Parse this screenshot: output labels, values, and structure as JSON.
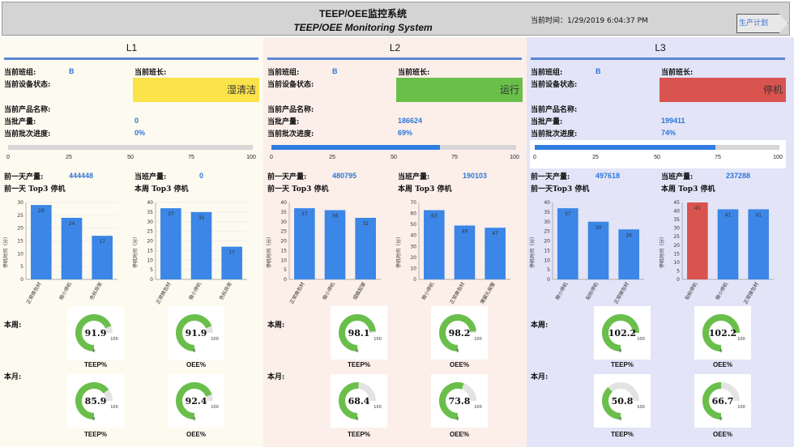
{
  "header": {
    "title_cn": "TEEP/OEE监控系统",
    "title_en": "TEEP/OEE Monitoring System",
    "time_label": "当前时间：",
    "time_value": "1/29/2019 6:04:37 PM",
    "plan_button": "生产计划"
  },
  "labels": {
    "shift_group": "当前班组:",
    "shift_leader": "当前班长:",
    "device_status": "当前设备状态:",
    "product_name": "当前产品名称:",
    "batch_output": "当批产量:",
    "batch_progress": "当前批次进度:",
    "prev_day_output": "前一天产量:",
    "shift_output": "当班产量:",
    "this_week": "本周:",
    "this_month": "本月:",
    "teep": "TEEP%",
    "oee": "OEE%",
    "y_axis": "停机时间（分）"
  },
  "colors": {
    "accent": "#2d77d9",
    "bar": "#3b86e6",
    "bar_alert": "#d9534f",
    "gauge": "#6abf4b",
    "gauge_track": "#e3e3e3",
    "status_yellow": "#fbe34a",
    "status_green": "#6abf4b",
    "status_red": "#d9534f"
  },
  "progress_ticks": [
    "0",
    "25",
    "50",
    "75",
    "100"
  ],
  "lines": [
    {
      "name": "L1",
      "shift_group": "B",
      "status": "湿清洁",
      "status_color": "#fbe34a",
      "batch_output": "0",
      "batch_progress": "0%",
      "progress": 0,
      "prev_day_output": "444448",
      "shift_output": "0",
      "prev_day_chart": {
        "title": "前一天 Top3 停机",
        "ymax": 30,
        "yticks": [
          0,
          5,
          10,
          15,
          20,
          25,
          30
        ],
        "categories": [
          "正常换包材",
          "微小停机",
          "色标异常"
        ],
        "values": [
          29,
          24,
          17
        ],
        "value_labels": [
          "29",
          "24",
          "17"
        ],
        "colors": [
          "#3b86e6",
          "#3b86e6",
          "#3b86e6"
        ]
      },
      "week_chart": {
        "title": "本周 Top3 停机",
        "ymax": 40,
        "yticks": [
          0,
          5,
          10,
          15,
          20,
          25,
          30,
          35,
          40
        ],
        "categories": [
          "正常换包材",
          "微小停机",
          "色标异常"
        ],
        "values": [
          37,
          35,
          17
        ],
        "value_labels": [
          "37",
          "35",
          "17"
        ],
        "colors": [
          "#3b86e6",
          "#3b86e6",
          "#3b86e6"
        ]
      },
      "gauges": {
        "week_teep": {
          "value": 91.9,
          "label": "91.9",
          "min": "0",
          "max": "100"
        },
        "week_oee": {
          "value": 91.9,
          "label": "91.9",
          "min": "0",
          "max": "100"
        },
        "month_teep": {
          "value": 85.9,
          "label": "85.9",
          "min": "0",
          "max": "100"
        },
        "month_oee": {
          "value": 92.4,
          "label": "92.4",
          "min": "0",
          "max": "100"
        }
      }
    },
    {
      "name": "L2",
      "shift_group": "B",
      "status": "运行",
      "status_color": "#6abf4b",
      "batch_output": "186624",
      "batch_progress": "69%",
      "progress": 69,
      "prev_day_output": "480795",
      "shift_output": "190103",
      "prev_day_chart": {
        "title": "前一天 Top3 停机",
        "ymax": 40,
        "yticks": [
          0,
          5,
          10,
          15,
          20,
          25,
          30,
          35,
          40
        ],
        "categories": [
          "正常换包材",
          "微小停机",
          "褶痕起皱"
        ],
        "values": [
          37,
          36,
          32
        ],
        "value_labels": [
          "37",
          "36",
          "32"
        ],
        "colors": [
          "#3b86e6",
          "#3b86e6",
          "#3b86e6"
        ]
      },
      "week_chart": {
        "title": "本周 Top3 停机",
        "ymax": 70,
        "yticks": [
          0,
          10,
          20,
          30,
          40,
          50,
          60,
          70
        ],
        "categories": [
          "微小停机",
          "正常换包材",
          "薄膜孔报警"
        ],
        "values": [
          63,
          49,
          47
        ],
        "value_labels": [
          "63",
          "49",
          "47"
        ],
        "colors": [
          "#3b86e6",
          "#3b86e6",
          "#3b86e6"
        ]
      },
      "gauges": {
        "week_teep": {
          "value": 98.1,
          "label": "98.1",
          "min": "0",
          "max": "100"
        },
        "week_oee": {
          "value": 98.2,
          "label": "98.2",
          "min": "0",
          "max": "100"
        },
        "month_teep": {
          "value": 68.4,
          "label": "68.4",
          "min": "0",
          "max": "100"
        },
        "month_oee": {
          "value": 73.8,
          "label": "73.8",
          "min": "0",
          "max": "100"
        }
      }
    },
    {
      "name": "L3",
      "shift_group": "B",
      "status": "停机",
      "status_color": "#d9534f",
      "batch_output": "199411",
      "batch_progress": "74%",
      "progress": 74,
      "prev_day_output": "497618",
      "shift_output": "237288",
      "prev_day_chart": {
        "title": "前一天Top3 停机",
        "ymax": 40,
        "yticks": [
          0,
          5,
          10,
          15,
          20,
          25,
          30,
          35,
          40
        ],
        "categories": [
          "微小停机",
          "贴标停机",
          "正常换包材"
        ],
        "values": [
          37,
          30,
          26
        ],
        "value_labels": [
          "37",
          "30",
          "26"
        ],
        "colors": [
          "#3b86e6",
          "#3b86e6",
          "#3b86e6"
        ]
      },
      "week_chart": {
        "title": "本周 Top3 停机",
        "ymax": 45,
        "yticks": [
          0,
          5,
          10,
          15,
          20,
          25,
          30,
          35,
          40,
          45
        ],
        "categories": [
          "贴标停机",
          "微小停机",
          "正常换包材"
        ],
        "values": [
          45,
          41,
          41
        ],
        "value_labels": [
          "45",
          "41",
          "41"
        ],
        "colors": [
          "#d9534f",
          "#3b86e6",
          "#3b86e6"
        ]
      },
      "gauges": {
        "week_teep": {
          "value": 102.2,
          "label": "102.2",
          "min": "0",
          "max": "100"
        },
        "week_oee": {
          "value": 102.2,
          "label": "102.2",
          "min": "0",
          "max": "100"
        },
        "month_teep": {
          "value": 50.8,
          "label": "50.8",
          "min": "0",
          "max": "100"
        },
        "month_oee": {
          "value": 66.7,
          "label": "66.7",
          "min": "0",
          "max": "100"
        }
      }
    }
  ]
}
